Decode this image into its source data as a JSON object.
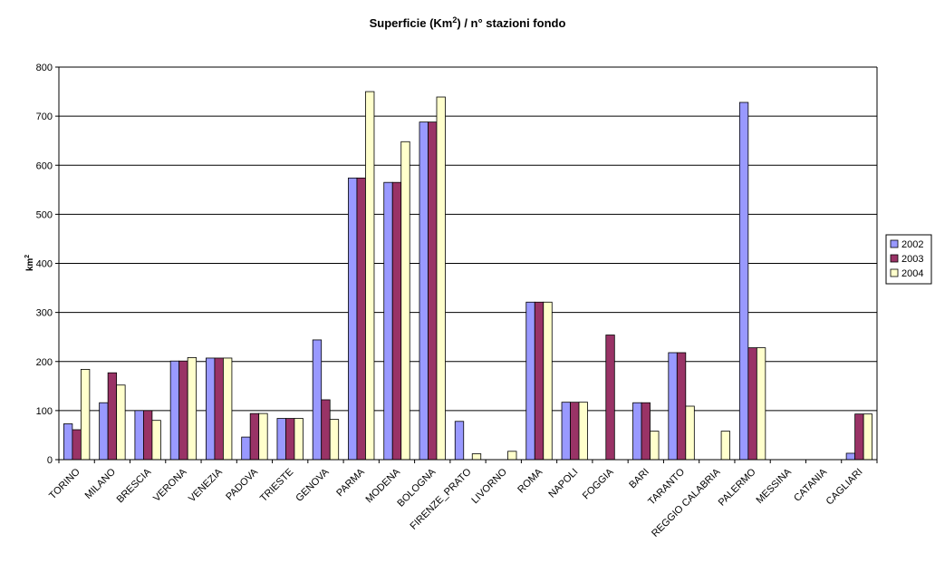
{
  "chart_data": {
    "type": "bar",
    "title_main": "Superficie (Km",
    "title_sup": "2",
    "title_rest": ") / n° stazioni  fondo",
    "ylabel_main": "km",
    "ylabel_sup": "2",
    "xlabel": "",
    "ylim": [
      0,
      800
    ],
    "yticks": [
      0,
      100,
      200,
      300,
      400,
      500,
      600,
      700,
      800
    ],
    "grid": true,
    "legend_position": "right",
    "categories": [
      "TORINO",
      "MILANO",
      "BRESCIA",
      "VERONA",
      "VENEZIA",
      "PADOVA",
      "TRIESTE",
      "GENOVA",
      "PARMA",
      "MODENA",
      "BOLOGNA",
      "FIRENZE_PRATO",
      "LIVORNO",
      "ROMA",
      "NAPOLI",
      "FOGGIA",
      "BARI",
      "TARANTO",
      "REGGIO CALABRIA",
      "PALERMO",
      "MESSINA",
      "CATANIA",
      "CAGLIARI"
    ],
    "series": [
      {
        "name": "2002",
        "color": "#9999ff",
        "values": [
          73,
          116,
          100,
          201,
          207,
          46,
          84,
          244,
          574,
          565,
          688,
          78,
          null,
          321,
          117,
          null,
          116,
          218,
          null,
          728,
          null,
          null,
          13
        ]
      },
      {
        "name": "2003",
        "color": "#993366",
        "values": [
          61,
          177,
          100,
          201,
          207,
          94,
          84,
          122,
          574,
          565,
          688,
          null,
          null,
          321,
          117,
          254,
          116,
          218,
          null,
          228,
          null,
          null,
          93
        ]
      },
      {
        "name": "2004",
        "color": "#ffffcc",
        "values": [
          184,
          152,
          80,
          208,
          207,
          94,
          84,
          82,
          750,
          648,
          739,
          12,
          17,
          321,
          117,
          null,
          58,
          109,
          58,
          228,
          null,
          null,
          93
        ]
      }
    ]
  }
}
